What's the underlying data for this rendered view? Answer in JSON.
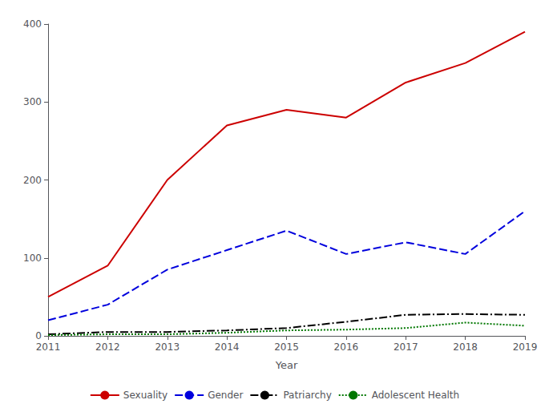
{
  "chart_data": {
    "type": "line",
    "xlabel": "Year",
    "x": [
      2011,
      2012,
      2013,
      2014,
      2015,
      2016,
      2017,
      2018,
      2019
    ],
    "series": [
      {
        "name": "Sexuality",
        "color": "#cc0000",
        "line_style": "solid",
        "values": [
          50,
          90,
          200,
          270,
          290,
          280,
          325,
          350,
          390
        ]
      },
      {
        "name": "Gender",
        "color": "#0000dd",
        "line_style": "dashed",
        "values": [
          20,
          40,
          85,
          110,
          135,
          105,
          120,
          105,
          160
        ]
      },
      {
        "name": "Patriarchy",
        "color": "#000000",
        "line_style": "dashdot",
        "values": [
          2,
          5,
          5,
          7,
          10,
          18,
          27,
          28,
          27
        ]
      },
      {
        "name": "Adolescent Health",
        "color": "#007700",
        "line_style": "dotted",
        "values": [
          1,
          2,
          2,
          4,
          7,
          8,
          10,
          17,
          13
        ]
      }
    ],
    "xlim": [
      2011,
      2019
    ],
    "ylim": [
      0,
      400
    ],
    "xticks": [
      2011,
      2012,
      2013,
      2014,
      2015,
      2016,
      2017,
      2018,
      2019
    ],
    "yticks": [
      0,
      100,
      200,
      300,
      400
    ],
    "grid": false,
    "legend": "bottom"
  }
}
